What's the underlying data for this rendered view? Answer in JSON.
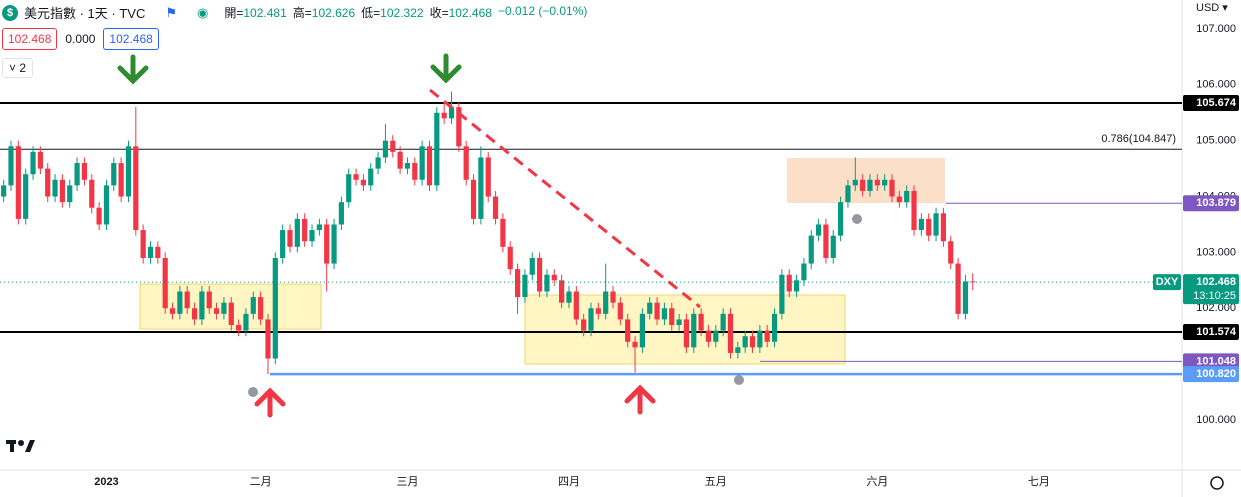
{
  "header": {
    "symbol": "美元指數 · 1天 · TVC",
    "change": "−0.012 (−0.01%)",
    "ohlc_labels": [
      "開=",
      "高=",
      "低=",
      "收="
    ],
    "price_boxes": [
      "102.468",
      "0.000",
      "102.468"
    ],
    "collapse": "2",
    "currency": "USD"
  },
  "chart_data": {
    "type": "candlestick",
    "series": [
      {
        "name": "DXY",
        "up_color": "#089981",
        "down_color": "#f23645",
        "open": [
          104.0,
          104.2,
          104.9,
          103.6,
          104.4,
          104.8,
          104.5,
          104.0,
          104.3,
          103.9,
          104.2,
          104.6,
          104.3,
          103.8,
          103.5,
          104.2,
          104.6,
          104.0,
          104.9,
          103.4,
          102.9,
          103.1,
          102.9,
          102.0,
          101.9,
          102.3,
          102.0,
          101.8,
          102.3,
          102.0,
          101.9,
          102.1,
          101.7,
          101.6,
          101.9,
          102.2,
          101.8,
          101.1,
          102.9,
          103.4,
          103.1,
          103.6,
          103.2,
          103.4,
          103.5,
          102.8,
          103.5,
          103.9,
          104.4,
          104.3,
          104.2,
          104.5,
          104.7,
          105.0,
          104.8,
          104.5,
          104.6,
          104.3,
          104.9,
          104.2,
          105.5,
          105.4,
          105.6,
          104.9,
          104.3,
          103.6,
          104.7,
          104.0,
          103.6,
          103.1,
          102.7,
          102.2,
          102.6,
          102.9,
          102.3,
          102.6,
          102.5,
          102.1,
          102.3,
          101.8,
          101.6,
          102.0,
          101.9,
          102.3,
          102.1,
          101.8,
          101.4,
          101.3,
          101.9,
          102.1,
          101.8,
          102.0,
          101.7,
          101.8,
          101.3,
          101.9,
          101.6,
          101.4,
          101.6,
          101.9,
          101.2,
          101.3,
          101.5,
          101.3,
          101.6,
          101.4,
          101.9,
          102.6,
          102.3,
          102.5,
          102.8,
          103.3,
          103.5,
          102.9,
          103.3,
          103.9,
          104.2,
          104.3,
          104.1,
          104.3,
          104.2,
          104.3,
          104.0,
          103.9,
          104.1,
          103.4,
          103.6,
          103.3,
          103.7,
          103.2,
          102.8,
          101.9,
          102.481
        ],
        "high": [
          104.3,
          105.0,
          105.0,
          104.5,
          104.9,
          104.9,
          104.6,
          104.4,
          104.4,
          104.3,
          104.7,
          104.7,
          104.4,
          103.9,
          104.3,
          104.7,
          104.7,
          105.0,
          105.6,
          103.5,
          103.2,
          103.2,
          103.0,
          102.1,
          102.4,
          102.4,
          102.1,
          102.4,
          102.4,
          102.1,
          102.2,
          102.2,
          101.8,
          102.0,
          102.3,
          102.3,
          101.9,
          103.0,
          103.5,
          103.5,
          103.7,
          103.7,
          103.5,
          103.6,
          103.6,
          103.6,
          104.0,
          104.5,
          104.5,
          104.4,
          104.6,
          104.8,
          105.3,
          105.1,
          104.9,
          104.7,
          104.7,
          105.0,
          105.0,
          105.6,
          105.7,
          105.88,
          105.7,
          105.0,
          104.4,
          104.9,
          104.8,
          104.1,
          103.7,
          103.2,
          102.8,
          102.7,
          103.0,
          103.0,
          102.7,
          102.7,
          102.6,
          102.4,
          102.4,
          101.9,
          102.1,
          102.1,
          102.8,
          102.4,
          102.2,
          101.9,
          101.5,
          102.0,
          102.2,
          102.2,
          102.1,
          102.1,
          101.9,
          101.9,
          102.0,
          102.0,
          101.7,
          101.7,
          102.0,
          102.0,
          101.4,
          101.6,
          101.6,
          101.7,
          101.7,
          102.0,
          102.7,
          102.7,
          102.6,
          102.9,
          103.4,
          103.6,
          103.6,
          103.4,
          104.0,
          104.3,
          104.7,
          104.4,
          104.4,
          104.4,
          104.4,
          104.4,
          104.1,
          104.2,
          104.2,
          103.7,
          103.7,
          103.8,
          103.8,
          103.3,
          102.9,
          102.6,
          102.626
        ],
        "low": [
          103.9,
          104.1,
          103.5,
          103.5,
          104.3,
          104.4,
          103.9,
          103.9,
          103.8,
          103.8,
          104.1,
          104.2,
          103.7,
          103.4,
          103.4,
          104.1,
          103.9,
          103.9,
          103.3,
          102.8,
          102.8,
          102.8,
          101.9,
          101.8,
          101.8,
          101.9,
          101.7,
          101.7,
          101.9,
          101.8,
          101.8,
          101.6,
          101.5,
          101.5,
          101.8,
          101.7,
          100.82,
          101.0,
          102.8,
          103.0,
          103.0,
          103.1,
          103.1,
          103.3,
          102.3,
          102.7,
          103.4,
          103.8,
          104.2,
          104.1,
          104.1,
          104.4,
          104.6,
          104.7,
          104.4,
          104.4,
          104.2,
          104.2,
          104.1,
          104.1,
          105.3,
          105.3,
          104.8,
          104.2,
          103.5,
          103.5,
          103.9,
          103.5,
          103.0,
          102.6,
          101.9,
          102.1,
          102.5,
          102.2,
          102.2,
          102.4,
          102.0,
          102.0,
          101.7,
          101.5,
          101.5,
          101.8,
          101.8,
          102.0,
          101.7,
          101.3,
          100.85,
          101.2,
          101.8,
          101.7,
          101.7,
          101.6,
          101.6,
          101.2,
          101.2,
          101.5,
          101.3,
          101.3,
          101.5,
          101.1,
          101.1,
          101.2,
          101.2,
          101.2,
          101.3,
          101.3,
          101.8,
          102.2,
          102.2,
          102.4,
          102.7,
          103.2,
          102.8,
          102.8,
          103.2,
          103.8,
          104.1,
          104.0,
          104.0,
          104.1,
          104.1,
          103.9,
          103.8,
          103.8,
          103.3,
          103.3,
          103.2,
          103.2,
          103.1,
          102.7,
          101.8,
          101.8,
          102.322
        ],
        "close": [
          104.2,
          104.9,
          103.6,
          104.4,
          104.8,
          104.5,
          104.0,
          104.3,
          103.9,
          104.2,
          104.6,
          104.3,
          103.8,
          103.5,
          104.2,
          104.6,
          104.0,
          104.9,
          103.4,
          102.9,
          103.1,
          102.9,
          102.0,
          101.9,
          102.3,
          102.0,
          101.8,
          102.3,
          102.0,
          101.9,
          102.1,
          101.7,
          101.6,
          101.9,
          102.2,
          101.8,
          101.1,
          102.9,
          103.4,
          103.1,
          103.6,
          103.2,
          103.4,
          103.5,
          102.8,
          103.5,
          103.9,
          104.4,
          104.3,
          104.2,
          104.5,
          104.7,
          105.0,
          104.8,
          104.5,
          104.6,
          104.3,
          104.9,
          104.2,
          105.5,
          105.4,
          105.6,
          104.9,
          104.3,
          103.6,
          104.7,
          104.0,
          103.6,
          103.1,
          102.7,
          102.2,
          102.6,
          102.9,
          102.3,
          102.6,
          102.5,
          102.1,
          102.3,
          101.8,
          101.6,
          102.0,
          101.9,
          102.3,
          102.1,
          101.8,
          101.4,
          101.3,
          101.9,
          102.1,
          101.8,
          102.0,
          101.7,
          101.8,
          101.3,
          101.9,
          101.6,
          101.4,
          101.6,
          101.9,
          101.2,
          101.3,
          101.5,
          101.3,
          101.6,
          101.4,
          101.9,
          102.6,
          102.3,
          102.5,
          102.8,
          103.3,
          103.5,
          102.9,
          103.3,
          103.9,
          104.2,
          104.3,
          104.1,
          104.3,
          104.2,
          104.3,
          104.0,
          103.9,
          104.1,
          103.4,
          103.6,
          103.3,
          103.7,
          103.2,
          102.8,
          101.9,
          102.48,
          102.468
        ]
      }
    ],
    "xlim": [
      -0.5,
      160.5
    ],
    "xticks": [
      {
        "value": 14,
        "label": "2023"
      },
      {
        "value": 35,
        "label": "二月"
      },
      {
        "value": 55,
        "label": "三月"
      },
      {
        "value": 77,
        "label": "四月"
      },
      {
        "value": 97,
        "label": "五月"
      },
      {
        "value": 119,
        "label": "六月"
      },
      {
        "value": 141,
        "label": "七月"
      }
    ],
    "ylim": [
      99.104,
      107.519
    ],
    "yticks": [
      {
        "value": 100,
        "label": "100.000"
      },
      {
        "value": 101,
        "label": "101.000"
      },
      {
        "value": 102,
        "label": "102.000"
      },
      {
        "value": 103,
        "label": "103.000"
      },
      {
        "value": 104,
        "label": "104.000"
      },
      {
        "value": 105,
        "label": "105.000"
      },
      {
        "value": 106,
        "label": "106.000"
      },
      {
        "value": 107,
        "label": "107.000"
      }
    ],
    "price_lines": [
      {
        "value": 105.674,
        "color": "#000000"
      },
      {
        "value": 103.879,
        "color": "#7e57c2"
      },
      {
        "value": 101.574,
        "color": "#000000"
      },
      {
        "value": 101.048,
        "color": "#7e57c2"
      },
      {
        "value": 100.82,
        "label": "100.820",
        "color": "#5b9cf6"
      }
    ],
    "fib": {
      "value": 104.847,
      "label": "0.786(104.847)"
    },
    "last_price": {
      "symbol": "DXY",
      "countdown": "13:10:25",
      "color": "#089981"
    }
  }
}
